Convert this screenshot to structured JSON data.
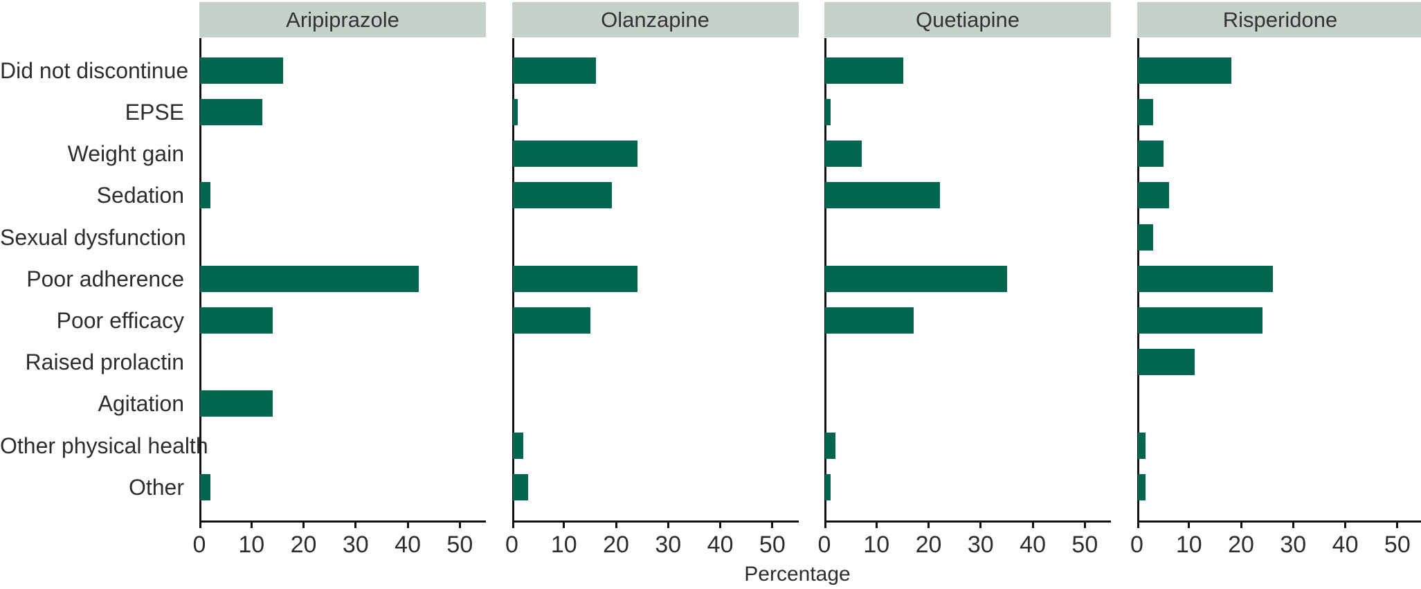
{
  "chart_data": {
    "type": "bar",
    "orientation": "horizontal",
    "xlabel": "Percentage",
    "categories": [
      "Did not discontinue",
      "EPSE",
      "Weight gain",
      "Sedation",
      "Sexual dysfunction",
      "Poor adherence",
      "Poor efficacy",
      "Raised prolactin",
      "Agitation",
      "Other physical health",
      "Other"
    ],
    "series": [
      {
        "name": "Aripiprazole",
        "values": [
          16,
          12,
          0,
          2,
          0,
          42,
          14,
          0,
          14,
          0,
          2
        ]
      },
      {
        "name": "Olanzapine",
        "values": [
          16,
          1,
          24,
          19,
          0,
          24,
          15,
          0,
          0,
          2,
          3
        ]
      },
      {
        "name": "Quetiapine",
        "values": [
          15,
          1,
          7,
          22,
          0,
          35,
          17,
          0,
          0,
          2,
          1
        ]
      },
      {
        "name": "Risperidone",
        "values": [
          18,
          3,
          5,
          6,
          3,
          26,
          24,
          11,
          0,
          1.5,
          1.5
        ]
      }
    ],
    "x_ticks": [
      0,
      10,
      20,
      30,
      40,
      50
    ],
    "xlim": [
      0,
      55
    ],
    "grid": false,
    "legend": "none (panel headers act as series labels)",
    "colors": {
      "bar": "#00664F",
      "panel_header_bg": "#C6D1C9",
      "axis": "#111111",
      "text": "#2d2d2d"
    }
  }
}
